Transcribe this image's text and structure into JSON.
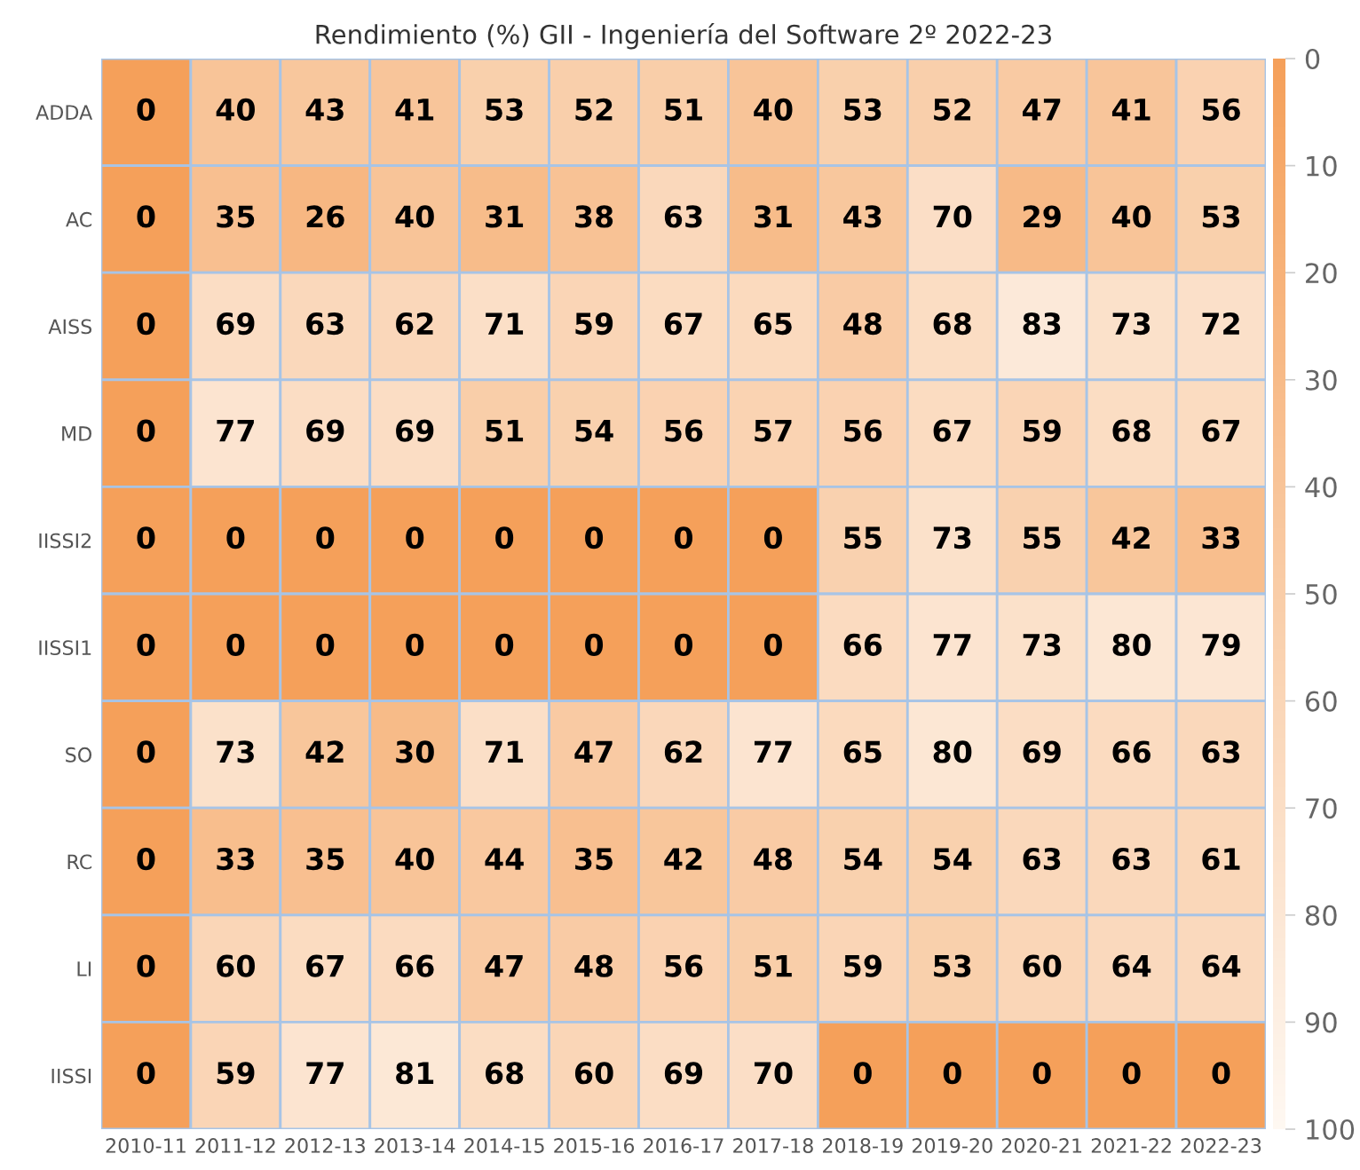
{
  "chart_data": {
    "type": "heatmap",
    "title": "Rendimiento (%) GII - Ingeniería del Software 2º 2022-23",
    "categories": [
      "2010-11",
      "2011-12",
      "2012-13",
      "2013-14",
      "2014-15",
      "2015-16",
      "2016-17",
      "2017-18",
      "2018-19",
      "2019-20",
      "2020-21",
      "2021-22",
      "2022-23"
    ],
    "y_categories": [
      "ADDA",
      "AC",
      "AISS",
      "MD",
      "IISSI2",
      "IISSI1",
      "SO",
      "RC",
      "LI",
      "IISSI"
    ],
    "cells": [
      [
        0,
        40,
        43,
        41,
        53,
        52,
        51,
        40,
        53,
        52,
        47,
        41,
        56
      ],
      [
        0,
        35,
        26,
        40,
        31,
        38,
        63,
        31,
        43,
        70,
        29,
        40,
        53
      ],
      [
        0,
        69,
        63,
        62,
        71,
        59,
        67,
        65,
        48,
        68,
        83,
        73,
        72
      ],
      [
        0,
        77,
        69,
        69,
        51,
        54,
        56,
        57,
        56,
        67,
        59,
        68,
        67
      ],
      [
        0,
        0,
        0,
        0,
        0,
        0,
        0,
        0,
        55,
        73,
        55,
        42,
        33
      ],
      [
        0,
        0,
        0,
        0,
        0,
        0,
        0,
        0,
        66,
        77,
        73,
        80,
        79
      ],
      [
        0,
        73,
        42,
        30,
        71,
        47,
        62,
        77,
        65,
        80,
        69,
        66,
        63
      ],
      [
        0,
        33,
        35,
        40,
        44,
        35,
        42,
        48,
        54,
        54,
        63,
        63,
        61
      ],
      [
        0,
        60,
        67,
        66,
        47,
        48,
        56,
        51,
        59,
        53,
        60,
        64,
        64
      ],
      [
        0,
        59,
        77,
        81,
        68,
        60,
        69,
        70,
        0,
        0,
        0,
        0,
        0
      ]
    ],
    "clim": [
      0,
      100
    ],
    "cticks": [
      0,
      10,
      20,
      30,
      40,
      50,
      60,
      70,
      80,
      90,
      100
    ],
    "data_labels": true
  }
}
